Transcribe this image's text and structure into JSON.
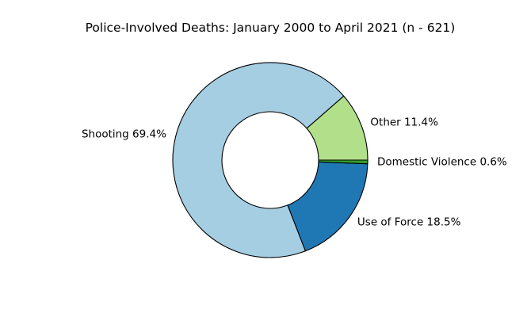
{
  "chart_data": {
    "type": "pie",
    "style": "donut",
    "title": "Police-Involved Deaths: January 2000 to April 2021 (n - 621)",
    "slices": [
      {
        "label": "Other 11.4%",
        "name": "Other",
        "value": 11.4,
        "color": "#b2df8a"
      },
      {
        "label": "Shooting 69.4%",
        "name": "Shooting",
        "value": 69.4,
        "color": "#a6cee3"
      },
      {
        "label": "Use of Force 18.5%",
        "name": "Use of Force",
        "value": 18.5,
        "color": "#1f78b4"
      },
      {
        "label": "Domestic Violence 0.6%",
        "name": "Domestic Violence",
        "value": 0.6,
        "color": "#33a02c"
      }
    ],
    "start_angle_deg": 0,
    "direction": "counterclockwise",
    "edge_color": "#000000",
    "legend": "none"
  }
}
